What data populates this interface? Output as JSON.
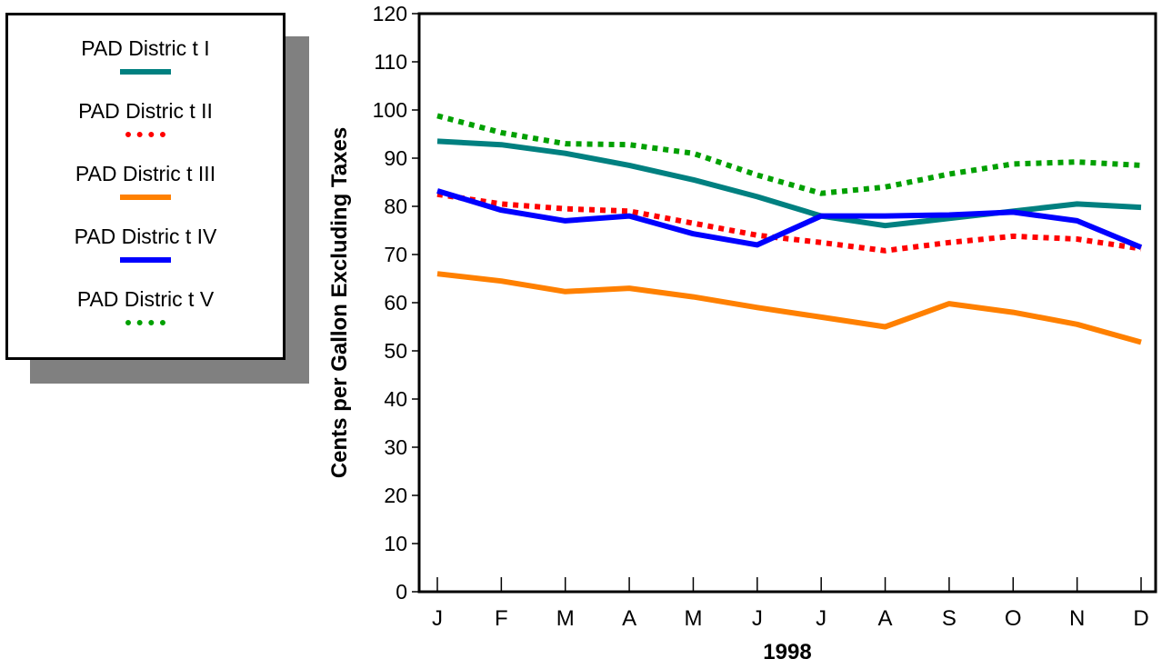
{
  "chart_data": {
    "type": "line",
    "xlabel": "1998",
    "ylabel": "Cents per Gallon Excluding Taxes",
    "categories": [
      "J",
      "F",
      "M",
      "A",
      "M",
      "J",
      "J",
      "A",
      "S",
      "O",
      "N",
      "D"
    ],
    "ylim": [
      0,
      120
    ],
    "yticks": [
      "0",
      "10",
      "20",
      "30",
      "40",
      "50",
      "60",
      "70",
      "80",
      "90",
      "100",
      "110",
      "120"
    ],
    "grid": false,
    "legend_position": "left",
    "series": [
      {
        "name": "PAD Distric t I",
        "color": "#008080",
        "style": "solid",
        "values": [
          93.5,
          92.8,
          91,
          88.5,
          85.5,
          82,
          78,
          76,
          77.5,
          79,
          80.5,
          79.8
        ]
      },
      {
        "name": "PAD Distric t II",
        "color": "#ff0000",
        "style": "dotted",
        "values": [
          82.5,
          80.5,
          79.5,
          79,
          76.5,
          74,
          72.5,
          70.8,
          72.5,
          73.8,
          73.2,
          71.2
        ]
      },
      {
        "name": "PAD Distric t III",
        "color": "#ff8000",
        "style": "solid",
        "values": [
          66,
          64.5,
          62.3,
          63,
          61.2,
          59,
          57,
          55,
          59.8,
          58,
          55.5,
          51.8
        ]
      },
      {
        "name": "PAD Distric t IV",
        "color": "#0000ff",
        "style": "solid",
        "values": [
          83.2,
          79.2,
          77,
          78,
          74.3,
          72,
          78,
          78,
          78.2,
          78.8,
          77,
          71.5
        ]
      },
      {
        "name": "PAD Distric t V",
        "color": "#00a000",
        "style": "dotted",
        "values": [
          98.8,
          95.3,
          93,
          92.8,
          91,
          86.5,
          82.7,
          84,
          86.7,
          88.8,
          89.2,
          88.5
        ]
      }
    ]
  }
}
